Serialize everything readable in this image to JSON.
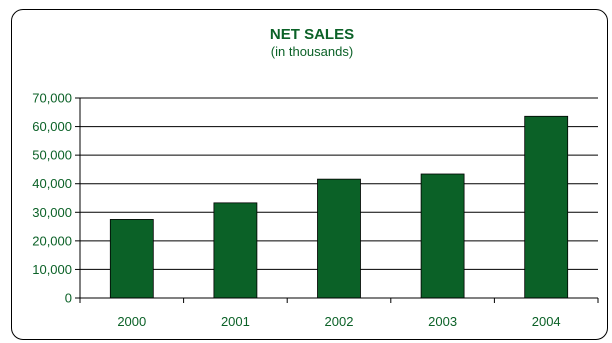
{
  "chart_data": {
    "type": "bar",
    "title": "NET SALES",
    "subtitle": "(in thousands)",
    "xlabel": "",
    "ylabel": "",
    "categories": [
      "2000",
      "2001",
      "2002",
      "2003",
      "2004"
    ],
    "values": [
      27500,
      33300,
      41600,
      43400,
      63600
    ],
    "ylim": [
      0,
      70000
    ],
    "ytick_step": 10000,
    "ytick_labels": [
      "0",
      "10,000",
      "20,000",
      "30,000",
      "40,000",
      "50,000",
      "60,000",
      "70,000"
    ],
    "grid": true,
    "legend": "none",
    "colors": {
      "bar": "#0b6127",
      "title": "#0b6127",
      "tick_label": "#0b6127",
      "subtitle": "#0b6127",
      "gridline": "#000000",
      "axis": "#000000"
    }
  }
}
